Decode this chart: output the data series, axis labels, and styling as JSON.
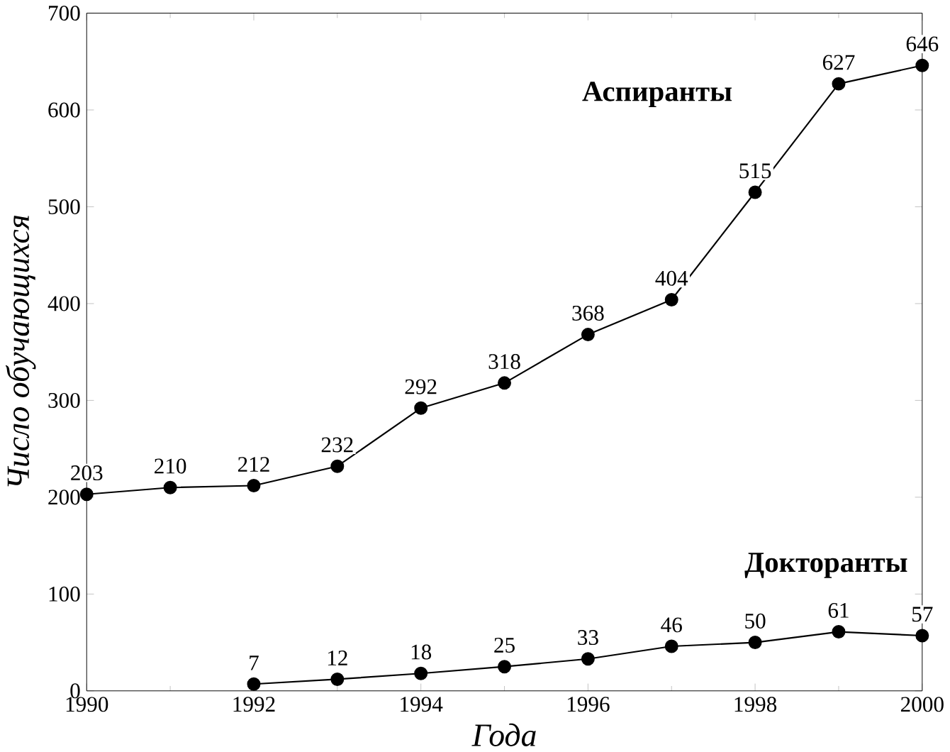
{
  "chart_data": {
    "type": "line",
    "xlabel": "Года",
    "ylabel": "Число обучающихся",
    "xlim": [
      1990,
      2000
    ],
    "ylim": [
      0,
      700
    ],
    "xticks": [
      1990,
      1992,
      1994,
      1996,
      1998,
      2000
    ],
    "yticks": [
      0,
      100,
      200,
      300,
      400,
      500,
      600,
      700
    ],
    "marker": "circle",
    "line_style": "solid",
    "data_labels": true,
    "grid": false,
    "legend": false,
    "series": [
      {
        "name": "Аспиранты",
        "color": "#000000",
        "x": [
          1990,
          1991,
          1992,
          1993,
          1994,
          1995,
          1996,
          1997,
          1998,
          1999,
          2000
        ],
        "values": [
          203,
          210,
          212,
          232,
          292,
          318,
          368,
          404,
          515,
          627,
          646
        ]
      },
      {
        "name": "Докторанты",
        "color": "#000000",
        "x": [
          1992,
          1993,
          1994,
          1995,
          1996,
          1997,
          1998,
          1999,
          2000
        ],
        "values": [
          7,
          12,
          18,
          25,
          33,
          46,
          50,
          61,
          57
        ]
      }
    ]
  }
}
